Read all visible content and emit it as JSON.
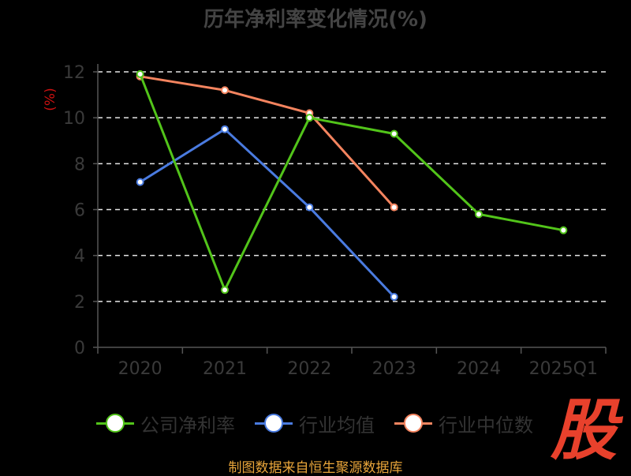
{
  "title": "历年净利率变化情况(%)",
  "source": "制图数据来自恒生聚源数据库",
  "badge": "股",
  "chart_data": {
    "type": "line",
    "title": "历年净利率变化情况(%)",
    "xlabel": "",
    "ylabel": "(%)",
    "ylim": [
      0,
      12
    ],
    "yticks": [
      0,
      2,
      4,
      6,
      8,
      10,
      12
    ],
    "grid": true,
    "legend": "bottom",
    "categories": [
      "2020",
      "2021",
      "2022",
      "2023",
      "2024",
      "2025Q1"
    ],
    "series": [
      {
        "name": "公司净利率",
        "color": "#52c41a",
        "values": [
          11.9,
          2.5,
          10.0,
          9.3,
          5.8,
          5.1
        ]
      },
      {
        "name": "行业均值",
        "color": "#4a7be0",
        "values": [
          7.2,
          9.5,
          6.1,
          2.2,
          null,
          null
        ]
      },
      {
        "name": "行业中位数",
        "color": "#f4845f",
        "values": [
          11.8,
          11.2,
          10.2,
          6.1,
          null,
          null
        ]
      }
    ]
  }
}
